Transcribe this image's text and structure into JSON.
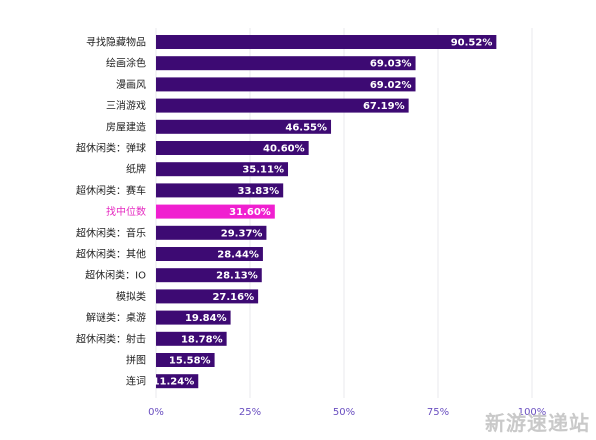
{
  "chart_data": {
    "type": "bar",
    "orientation": "horizontal",
    "categories": [
      "寻找隐藏物品",
      "绘画涂色",
      "漫画风",
      "三消游戏",
      "房屋建造",
      "超休闲类：弹球",
      "纸牌",
      "超休闲类：赛车",
      "找中位数",
      "超休闲类：音乐",
      "超休闲类：其他",
      "超休闲类：IO",
      "模拟类",
      "解谜类：桌游",
      "超休闲类：射击",
      "拼图",
      "连词"
    ],
    "values": [
      90.52,
      69.03,
      69.02,
      67.19,
      46.55,
      40.6,
      35.11,
      33.83,
      31.6,
      29.37,
      28.44,
      28.13,
      27.16,
      19.84,
      18.78,
      15.58,
      11.24
    ],
    "value_labels": [
      "90.52%",
      "69.03%",
      "69.02%",
      "67.19%",
      "46.55%",
      "40.60%",
      "35.11%",
      "33.83%",
      "31.60%",
      "29.37%",
      "28.44%",
      "28.13%",
      "27.16%",
      "19.84%",
      "18.78%",
      "15.58%",
      "11.24%"
    ],
    "highlight_index": 8,
    "xlim": [
      0,
      100
    ],
    "x_ticks": [
      "0%",
      "25%",
      "50%",
      "75%",
      "100%"
    ],
    "x_tick_values": [
      0,
      25,
      50,
      75,
      100
    ],
    "grid": true,
    "colors": {
      "bar": "#3d0a73",
      "highlight": "#f01fd0",
      "highlight_label": "#e52bc1",
      "tick": "#6a4fc0"
    }
  },
  "watermark": "新游速递站"
}
